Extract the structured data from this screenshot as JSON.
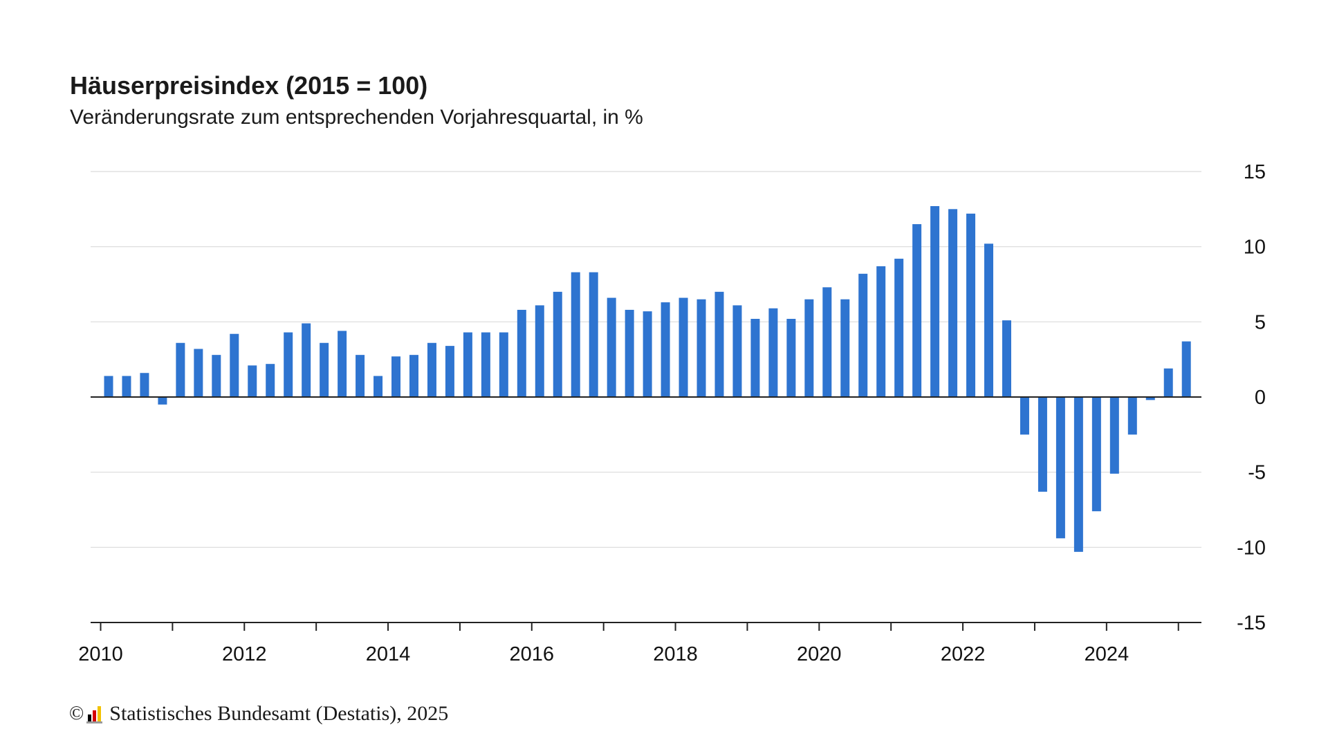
{
  "header": {
    "title": "Häuserpreisindex (2015 = 100)",
    "subtitle": "Veränderungsrate zum entsprechenden Vorjahresquartal, in %"
  },
  "footer": {
    "copyright_symbol": "©",
    "source": "Statistisches Bundesamt (Destatis), 2025",
    "logo_icon": "destatis-logo-icon"
  },
  "colors": {
    "bar": "#2e74d0",
    "grid": "#d9d9d9",
    "zero_line": "#222222",
    "axis": "#222222",
    "text": "#1a1a1a"
  },
  "chart_data": {
    "type": "bar",
    "title": "Häuserpreisindex (2015 = 100)",
    "subtitle": "Veränderungsrate zum entsprechenden Vorjahresquartal, in %",
    "xlabel": "",
    "ylabel": "",
    "ylim": [
      -15,
      15
    ],
    "yticks": [
      15,
      10,
      5,
      0,
      -5,
      -10,
      -15
    ],
    "y_axis_position": "right",
    "grid": true,
    "legend": "none",
    "x_year_labels": [
      "2010",
      "2012",
      "2014",
      "2016",
      "2018",
      "2020",
      "2022",
      "2024"
    ],
    "categories": [
      "2010 Q1",
      "2010 Q2",
      "2010 Q3",
      "2010 Q4",
      "2011 Q1",
      "2011 Q2",
      "2011 Q3",
      "2011 Q4",
      "2012 Q1",
      "2012 Q2",
      "2012 Q3",
      "2012 Q4",
      "2013 Q1",
      "2013 Q2",
      "2013 Q3",
      "2013 Q4",
      "2014 Q1",
      "2014 Q2",
      "2014 Q3",
      "2014 Q4",
      "2015 Q1",
      "2015 Q2",
      "2015 Q3",
      "2015 Q4",
      "2016 Q1",
      "2016 Q2",
      "2016 Q3",
      "2016 Q4",
      "2017 Q1",
      "2017 Q2",
      "2017 Q3",
      "2017 Q4",
      "2018 Q1",
      "2018 Q2",
      "2018 Q3",
      "2018 Q4",
      "2019 Q1",
      "2019 Q2",
      "2019 Q3",
      "2019 Q4",
      "2020 Q1",
      "2020 Q2",
      "2020 Q3",
      "2020 Q4",
      "2021 Q1",
      "2021 Q2",
      "2021 Q3",
      "2021 Q4",
      "2022 Q1",
      "2022 Q2",
      "2022 Q3",
      "2022 Q4",
      "2023 Q1",
      "2023 Q2",
      "2023 Q3",
      "2023 Q4",
      "2024 Q1",
      "2024 Q2",
      "2024 Q3",
      "2024 Q4",
      "2025 Q1"
    ],
    "values": [
      1.4,
      1.4,
      1.6,
      -0.5,
      3.6,
      3.2,
      2.8,
      4.2,
      2.1,
      2.2,
      4.3,
      4.9,
      3.6,
      4.4,
      2.8,
      1.4,
      2.7,
      2.8,
      3.6,
      3.4,
      4.3,
      4.3,
      4.3,
      5.8,
      6.1,
      7.0,
      8.3,
      8.3,
      6.6,
      5.8,
      5.7,
      6.3,
      6.6,
      6.5,
      7.0,
      6.1,
      5.2,
      5.9,
      5.2,
      6.5,
      7.3,
      6.5,
      8.2,
      8.7,
      9.2,
      11.5,
      12.7,
      12.5,
      12.2,
      10.2,
      5.1,
      -2.5,
      -6.3,
      -9.4,
      -10.3,
      -7.6,
      -5.1,
      -2.5,
      -0.2,
      1.9,
      3.7
    ]
  }
}
